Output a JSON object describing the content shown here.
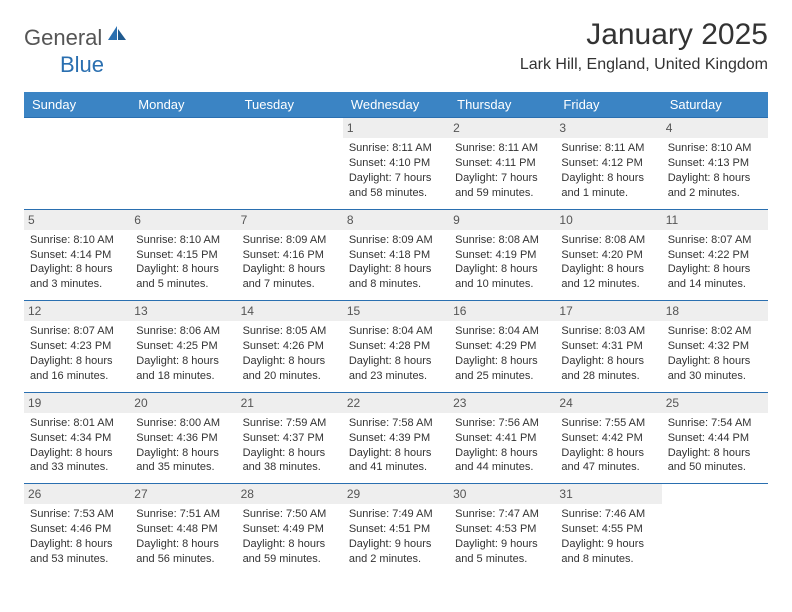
{
  "brand": {
    "text_gray": "General",
    "text_blue": "Blue"
  },
  "title": {
    "month": "January 2025",
    "location": "Lark Hill, England, United Kingdom"
  },
  "colors": {
    "header_bg": "#3b84c4",
    "header_text": "#ffffff",
    "row_border": "#2a6fb0",
    "daynum_bg": "#eeeeee",
    "daynum_text": "#555555",
    "body_text": "#333333",
    "page_bg": "#ffffff",
    "logo_gray": "#555555",
    "logo_blue": "#2a6fb0"
  },
  "weekdays": [
    "Sunday",
    "Monday",
    "Tuesday",
    "Wednesday",
    "Thursday",
    "Friday",
    "Saturday"
  ],
  "weeks": [
    [
      null,
      null,
      null,
      {
        "n": "1",
        "sr": "Sunrise: 8:11 AM",
        "ss": "Sunset: 4:10 PM",
        "d1": "Daylight: 7 hours",
        "d2": "and 58 minutes."
      },
      {
        "n": "2",
        "sr": "Sunrise: 8:11 AM",
        "ss": "Sunset: 4:11 PM",
        "d1": "Daylight: 7 hours",
        "d2": "and 59 minutes."
      },
      {
        "n": "3",
        "sr": "Sunrise: 8:11 AM",
        "ss": "Sunset: 4:12 PM",
        "d1": "Daylight: 8 hours",
        "d2": "and 1 minute."
      },
      {
        "n": "4",
        "sr": "Sunrise: 8:10 AM",
        "ss": "Sunset: 4:13 PM",
        "d1": "Daylight: 8 hours",
        "d2": "and 2 minutes."
      }
    ],
    [
      {
        "n": "5",
        "sr": "Sunrise: 8:10 AM",
        "ss": "Sunset: 4:14 PM",
        "d1": "Daylight: 8 hours",
        "d2": "and 3 minutes."
      },
      {
        "n": "6",
        "sr": "Sunrise: 8:10 AM",
        "ss": "Sunset: 4:15 PM",
        "d1": "Daylight: 8 hours",
        "d2": "and 5 minutes."
      },
      {
        "n": "7",
        "sr": "Sunrise: 8:09 AM",
        "ss": "Sunset: 4:16 PM",
        "d1": "Daylight: 8 hours",
        "d2": "and 7 minutes."
      },
      {
        "n": "8",
        "sr": "Sunrise: 8:09 AM",
        "ss": "Sunset: 4:18 PM",
        "d1": "Daylight: 8 hours",
        "d2": "and 8 minutes."
      },
      {
        "n": "9",
        "sr": "Sunrise: 8:08 AM",
        "ss": "Sunset: 4:19 PM",
        "d1": "Daylight: 8 hours",
        "d2": "and 10 minutes."
      },
      {
        "n": "10",
        "sr": "Sunrise: 8:08 AM",
        "ss": "Sunset: 4:20 PM",
        "d1": "Daylight: 8 hours",
        "d2": "and 12 minutes."
      },
      {
        "n": "11",
        "sr": "Sunrise: 8:07 AM",
        "ss": "Sunset: 4:22 PM",
        "d1": "Daylight: 8 hours",
        "d2": "and 14 minutes."
      }
    ],
    [
      {
        "n": "12",
        "sr": "Sunrise: 8:07 AM",
        "ss": "Sunset: 4:23 PM",
        "d1": "Daylight: 8 hours",
        "d2": "and 16 minutes."
      },
      {
        "n": "13",
        "sr": "Sunrise: 8:06 AM",
        "ss": "Sunset: 4:25 PM",
        "d1": "Daylight: 8 hours",
        "d2": "and 18 minutes."
      },
      {
        "n": "14",
        "sr": "Sunrise: 8:05 AM",
        "ss": "Sunset: 4:26 PM",
        "d1": "Daylight: 8 hours",
        "d2": "and 20 minutes."
      },
      {
        "n": "15",
        "sr": "Sunrise: 8:04 AM",
        "ss": "Sunset: 4:28 PM",
        "d1": "Daylight: 8 hours",
        "d2": "and 23 minutes."
      },
      {
        "n": "16",
        "sr": "Sunrise: 8:04 AM",
        "ss": "Sunset: 4:29 PM",
        "d1": "Daylight: 8 hours",
        "d2": "and 25 minutes."
      },
      {
        "n": "17",
        "sr": "Sunrise: 8:03 AM",
        "ss": "Sunset: 4:31 PM",
        "d1": "Daylight: 8 hours",
        "d2": "and 28 minutes."
      },
      {
        "n": "18",
        "sr": "Sunrise: 8:02 AM",
        "ss": "Sunset: 4:32 PM",
        "d1": "Daylight: 8 hours",
        "d2": "and 30 minutes."
      }
    ],
    [
      {
        "n": "19",
        "sr": "Sunrise: 8:01 AM",
        "ss": "Sunset: 4:34 PM",
        "d1": "Daylight: 8 hours",
        "d2": "and 33 minutes."
      },
      {
        "n": "20",
        "sr": "Sunrise: 8:00 AM",
        "ss": "Sunset: 4:36 PM",
        "d1": "Daylight: 8 hours",
        "d2": "and 35 minutes."
      },
      {
        "n": "21",
        "sr": "Sunrise: 7:59 AM",
        "ss": "Sunset: 4:37 PM",
        "d1": "Daylight: 8 hours",
        "d2": "and 38 minutes."
      },
      {
        "n": "22",
        "sr": "Sunrise: 7:58 AM",
        "ss": "Sunset: 4:39 PM",
        "d1": "Daylight: 8 hours",
        "d2": "and 41 minutes."
      },
      {
        "n": "23",
        "sr": "Sunrise: 7:56 AM",
        "ss": "Sunset: 4:41 PM",
        "d1": "Daylight: 8 hours",
        "d2": "and 44 minutes."
      },
      {
        "n": "24",
        "sr": "Sunrise: 7:55 AM",
        "ss": "Sunset: 4:42 PM",
        "d1": "Daylight: 8 hours",
        "d2": "and 47 minutes."
      },
      {
        "n": "25",
        "sr": "Sunrise: 7:54 AM",
        "ss": "Sunset: 4:44 PM",
        "d1": "Daylight: 8 hours",
        "d2": "and 50 minutes."
      }
    ],
    [
      {
        "n": "26",
        "sr": "Sunrise: 7:53 AM",
        "ss": "Sunset: 4:46 PM",
        "d1": "Daylight: 8 hours",
        "d2": "and 53 minutes."
      },
      {
        "n": "27",
        "sr": "Sunrise: 7:51 AM",
        "ss": "Sunset: 4:48 PM",
        "d1": "Daylight: 8 hours",
        "d2": "and 56 minutes."
      },
      {
        "n": "28",
        "sr": "Sunrise: 7:50 AM",
        "ss": "Sunset: 4:49 PM",
        "d1": "Daylight: 8 hours",
        "d2": "and 59 minutes."
      },
      {
        "n": "29",
        "sr": "Sunrise: 7:49 AM",
        "ss": "Sunset: 4:51 PM",
        "d1": "Daylight: 9 hours",
        "d2": "and 2 minutes."
      },
      {
        "n": "30",
        "sr": "Sunrise: 7:47 AM",
        "ss": "Sunset: 4:53 PM",
        "d1": "Daylight: 9 hours",
        "d2": "and 5 minutes."
      },
      {
        "n": "31",
        "sr": "Sunrise: 7:46 AM",
        "ss": "Sunset: 4:55 PM",
        "d1": "Daylight: 9 hours",
        "d2": "and 8 minutes."
      },
      null
    ]
  ]
}
